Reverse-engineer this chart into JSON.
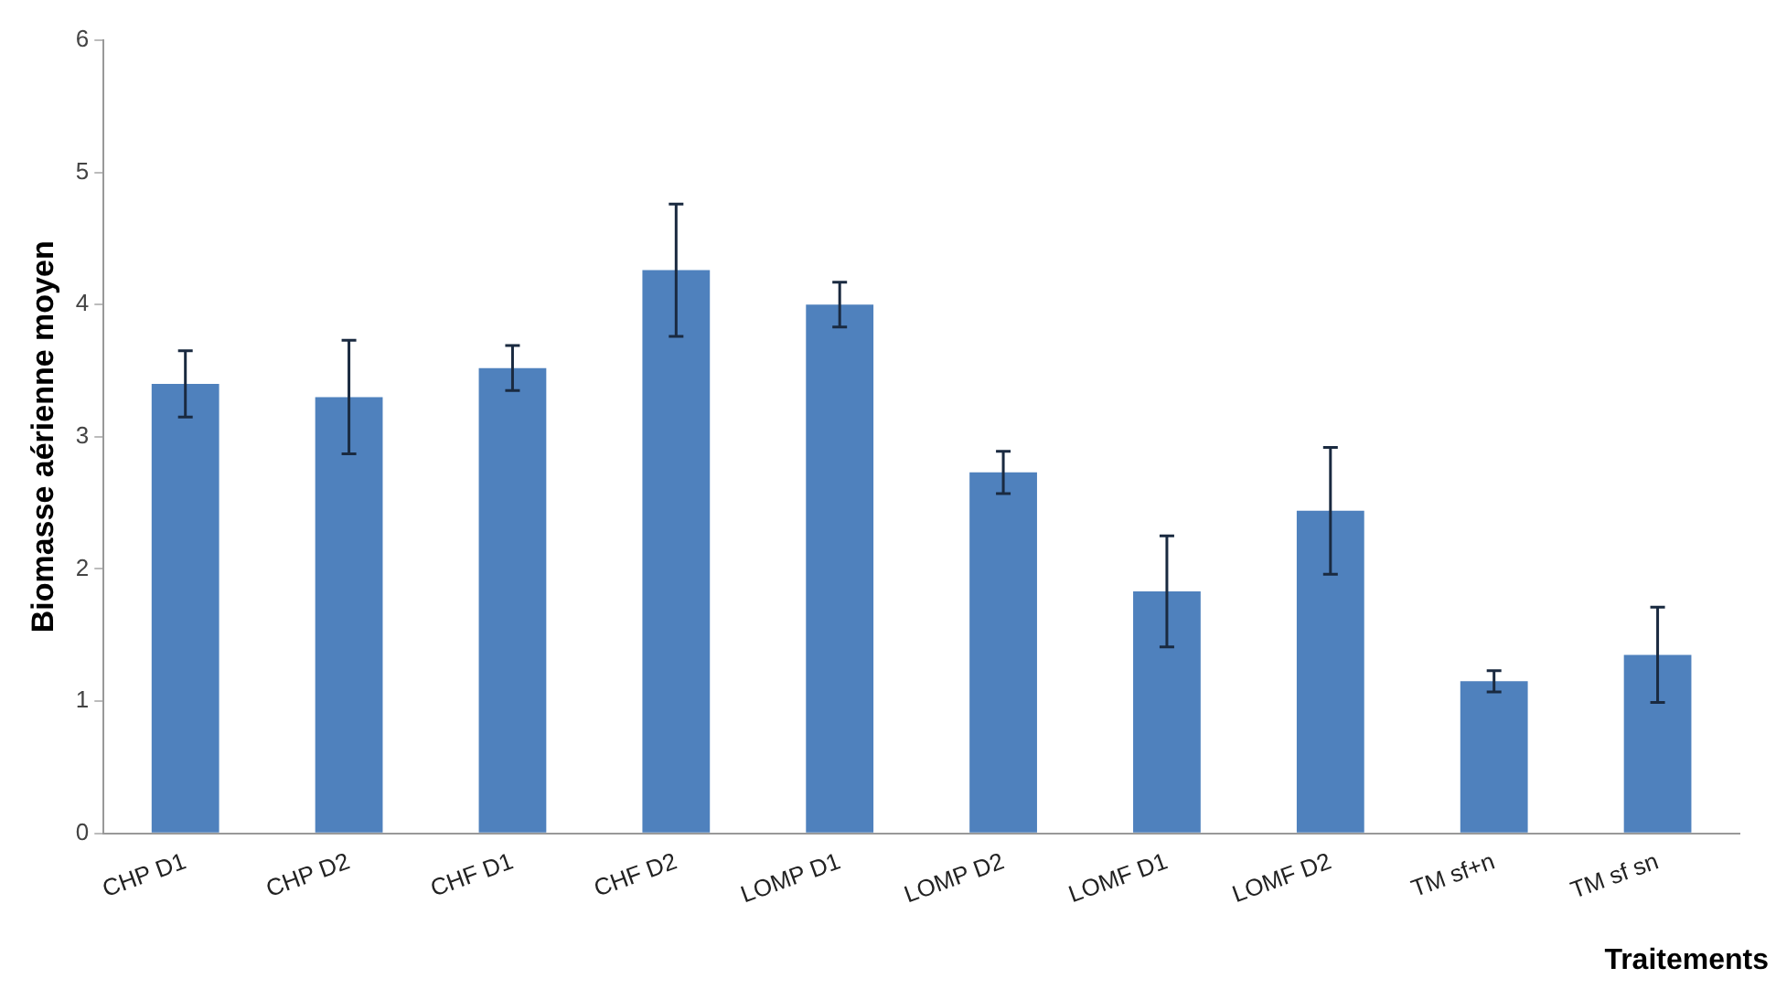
{
  "chart_data": {
    "type": "bar",
    "xlabel": "Traitements",
    "ylabel": "Biomasse aérienne moyen",
    "categories": [
      "CHP D1",
      "CHP D2",
      "CHF D1",
      "CHF D2",
      "LOMP D1",
      "LOMP D2",
      "LOMF D1",
      "LOMF D2",
      "TM sf+n",
      "TM sf sn"
    ],
    "values": [
      3.4,
      3.3,
      3.52,
      4.26,
      4.0,
      2.73,
      1.83,
      2.44,
      1.15,
      1.35
    ],
    "errors": [
      0.25,
      0.43,
      0.17,
      0.5,
      0.17,
      0.16,
      0.42,
      0.48,
      0.08,
      0.36
    ],
    "color": "#4f81bd",
    "ylim": [
      0,
      6
    ],
    "yticks": [
      0,
      1,
      2,
      3,
      4,
      5,
      6
    ],
    "grid": false,
    "legend": false
  }
}
